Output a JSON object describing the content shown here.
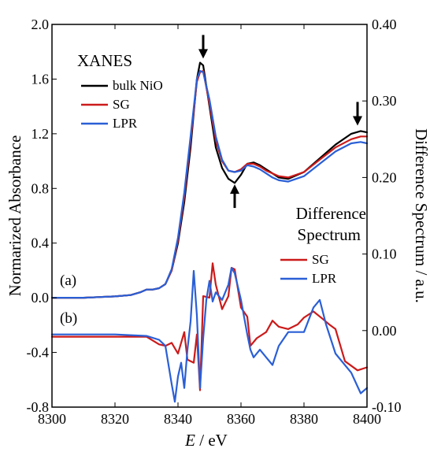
{
  "chart_data": {
    "type": "line",
    "x_axis": {
      "label_prefix": "E",
      "label_suffix": " / eV",
      "range": [
        8300,
        8400
      ],
      "ticks": [
        8300,
        8320,
        8340,
        8360,
        8380,
        8400
      ],
      "tick_labels": [
        "8300",
        "8320",
        "8340",
        "8360",
        "8380",
        "8400"
      ]
    },
    "y_left": {
      "label": "Normarized Absorbance",
      "range": [
        -0.8,
        2.0
      ],
      "ticks": [
        -0.8,
        -0.4,
        0.0,
        0.4,
        0.8,
        1.2,
        1.6,
        2.0
      ],
      "tick_labels": [
        "-0.8",
        "-0.4",
        "0.0",
        "0.4",
        "0.8",
        "1.2",
        "1.6",
        "2.0"
      ]
    },
    "y_right": {
      "label": "Difference Spectrum / a.u.",
      "range": [
        -0.1,
        0.4
      ],
      "ticks": [
        -0.1,
        0.0,
        0.1,
        0.2,
        0.3,
        0.4
      ],
      "tick_labels": [
        "-0.10",
        "0.00",
        "0.10",
        "0.20",
        "0.30",
        "0.40"
      ]
    },
    "grid": false,
    "panels": [
      {
        "label": "(a)",
        "legend_title": "XANES",
        "legend_placement": "top-left",
        "axis": "left",
        "series": [
          {
            "name": "bulk NiO",
            "color": "#000000",
            "x": [
              8300,
              8310,
              8320,
              8325,
              8328,
              8330,
              8332,
              8334,
              8336,
              8338,
              8340,
              8342,
              8344,
              8346,
              8347,
              8348,
              8350,
              8352,
              8354,
              8356,
              8358,
              8360,
              8362,
              8364,
              8366,
              8368,
              8370,
              8372,
              8375,
              8380,
              8385,
              8390,
              8395,
              8398,
              8400
            ],
            "y": [
              0.0,
              0.0,
              0.01,
              0.02,
              0.04,
              0.06,
              0.06,
              0.07,
              0.1,
              0.2,
              0.4,
              0.7,
              1.1,
              1.6,
              1.72,
              1.7,
              1.4,
              1.1,
              0.95,
              0.87,
              0.84,
              0.9,
              0.98,
              0.99,
              0.97,
              0.94,
              0.91,
              0.88,
              0.87,
              0.92,
              1.02,
              1.12,
              1.2,
              1.22,
              1.21
            ]
          },
          {
            "name": "SG",
            "color": "#cc1a1a",
            "x": [
              8300,
              8310,
              8320,
              8325,
              8328,
              8330,
              8332,
              8334,
              8336,
              8338,
              8340,
              8342,
              8344,
              8346,
              8347,
              8348,
              8350,
              8352,
              8354,
              8356,
              8358,
              8360,
              8362,
              8364,
              8366,
              8368,
              8370,
              8372,
              8375,
              8380,
              8385,
              8390,
              8395,
              8398,
              8400
            ],
            "y": [
              0.0,
              0.0,
              0.01,
              0.02,
              0.04,
              0.06,
              0.06,
              0.07,
              0.1,
              0.2,
              0.42,
              0.74,
              1.15,
              1.58,
              1.65,
              1.66,
              1.42,
              1.15,
              1.0,
              0.93,
              0.92,
              0.94,
              0.98,
              0.98,
              0.96,
              0.93,
              0.91,
              0.89,
              0.88,
              0.92,
              1.01,
              1.1,
              1.16,
              1.18,
              1.18
            ]
          },
          {
            "name": "LPR",
            "color": "#2a5fd6",
            "x": [
              8300,
              8310,
              8320,
              8325,
              8328,
              8330,
              8332,
              8334,
              8336,
              8338,
              8340,
              8342,
              8344,
              8346,
              8347,
              8348,
              8350,
              8352,
              8354,
              8356,
              8358,
              8360,
              8362,
              8364,
              8366,
              8368,
              8370,
              8372,
              8375,
              8380,
              8385,
              8390,
              8395,
              8398,
              8400
            ],
            "y": [
              0.0,
              0.0,
              0.01,
              0.02,
              0.04,
              0.06,
              0.06,
              0.07,
              0.1,
              0.21,
              0.44,
              0.77,
              1.18,
              1.6,
              1.66,
              1.65,
              1.45,
              1.18,
              1.01,
              0.93,
              0.92,
              0.93,
              0.97,
              0.96,
              0.94,
              0.91,
              0.88,
              0.86,
              0.85,
              0.89,
              0.98,
              1.07,
              1.13,
              1.14,
              1.13
            ]
          }
        ]
      },
      {
        "label": "(b)",
        "legend_title": "Difference Spectrum",
        "legend_placement": "right",
        "axis": "right",
        "series": [
          {
            "name": "SG",
            "color": "#cc1a1a",
            "x": [
              8300,
              8320,
              8330,
              8334,
              8336,
              8338,
              8340,
              8342,
              8343,
              8345,
              8346,
              8347,
              8348,
              8350,
              8351,
              8352,
              8354,
              8356,
              8357,
              8358,
              8360,
              8362,
              8363,
              8365,
              8368,
              8370,
              8372,
              8375,
              8378,
              8380,
              8383,
              8386,
              8388,
              8390,
              8393,
              8397,
              8400
            ],
            "y": [
              -0.008,
              -0.008,
              -0.008,
              -0.018,
              -0.02,
              -0.016,
              -0.03,
              -0.002,
              -0.038,
              -0.042,
              -0.005,
              -0.078,
              0.045,
              0.043,
              0.088,
              0.06,
              0.028,
              0.045,
              0.082,
              0.08,
              0.03,
              0.018,
              -0.02,
              -0.01,
              -0.002,
              0.013,
              0.005,
              0.002,
              0.008,
              0.017,
              0.025,
              0.015,
              0.008,
              0.002,
              -0.04,
              -0.052,
              -0.048
            ]
          },
          {
            "name": "LPR",
            "color": "#2a5fd6",
            "x": [
              8300,
              8320,
              8330,
              8334,
              8336,
              8338,
              8339,
              8340,
              8341,
              8342,
              8343,
              8344,
              8345,
              8346,
              8347,
              8348,
              8349,
              8350,
              8351,
              8352,
              8354,
              8356,
              8357,
              8358,
              8360,
              8362,
              8363,
              8364,
              8366,
              8368,
              8370,
              8372,
              8375,
              8380,
              8383,
              8385,
              8387,
              8390,
              8395,
              8398,
              8400
            ],
            "y": [
              -0.005,
              -0.005,
              -0.007,
              -0.012,
              -0.02,
              -0.07,
              -0.093,
              -0.06,
              -0.042,
              -0.075,
              -0.025,
              0.012,
              0.078,
              0.02,
              -0.075,
              -0.01,
              0.04,
              0.065,
              0.038,
              0.05,
              0.04,
              0.06,
              0.082,
              0.075,
              0.04,
              -0.005,
              -0.025,
              -0.035,
              -0.025,
              -0.035,
              -0.045,
              -0.02,
              -0.002,
              -0.002,
              0.03,
              0.04,
              0.008,
              -0.03,
              -0.055,
              -0.082,
              -0.075
            ]
          }
        ]
      }
    ],
    "annotations": [
      {
        "type": "arrow",
        "direction": "down",
        "x": 8348,
        "y": 1.75,
        "axis": "left"
      },
      {
        "type": "arrow",
        "direction": "up",
        "x": 8358,
        "y": 0.83,
        "axis": "left"
      },
      {
        "type": "arrow",
        "direction": "down",
        "x": 8397,
        "y": 1.26,
        "axis": "left"
      }
    ]
  }
}
